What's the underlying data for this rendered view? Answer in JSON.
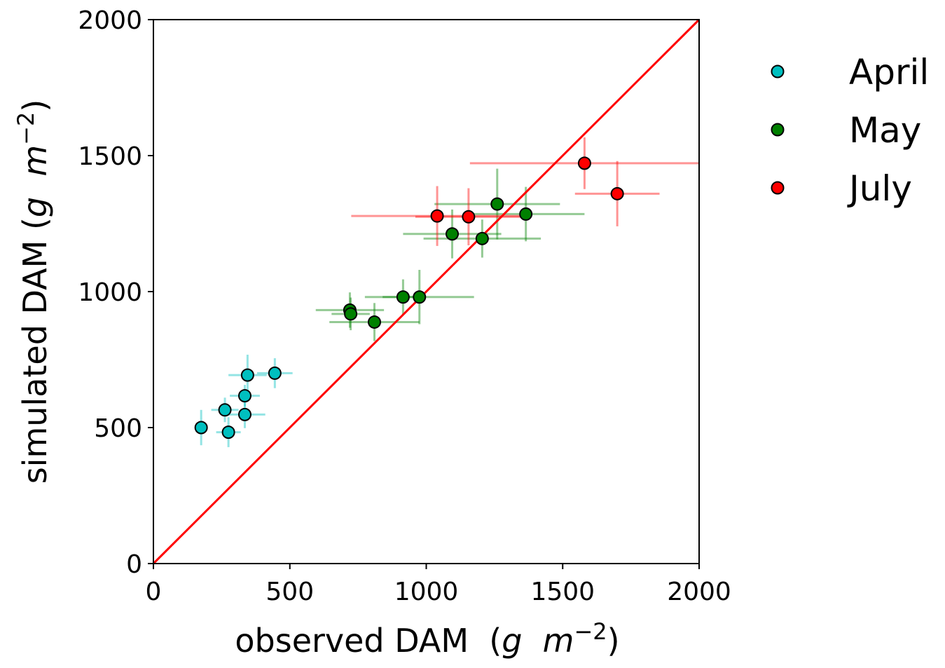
{
  "chart_data": {
    "type": "scatter",
    "xlabel": "observed DAM  (g m−2)",
    "ylabel": "simulated DAM (g m−2)",
    "xlim": [
      0,
      2000
    ],
    "ylim": [
      0,
      2000
    ],
    "xticks": [
      "0",
      "500",
      "1000",
      "1500",
      "2000"
    ],
    "yticks": [
      "0",
      "500",
      "1000",
      "1500",
      "2000"
    ],
    "grid": false,
    "legend_position": "outside-right-top",
    "reference_line": {
      "type": "1:1",
      "color": "#ff0000"
    },
    "series": [
      {
        "name": "April",
        "color": "#00bfbf",
        "points": [
          {
            "x": 175,
            "y": 500,
            "xerr": 15,
            "yerr": 65
          },
          {
            "x": 262,
            "y": 565,
            "xerr": 50,
            "yerr": 45
          },
          {
            "x": 275,
            "y": 483,
            "xerr": 45,
            "yerr": 55
          },
          {
            "x": 335,
            "y": 548,
            "xerr": 75,
            "yerr": 50
          },
          {
            "x": 335,
            "y": 617,
            "xerr": 55,
            "yerr": 40
          },
          {
            "x": 345,
            "y": 693,
            "xerr": 70,
            "yerr": 75
          },
          {
            "x": 445,
            "y": 700,
            "xerr": 65,
            "yerr": 55
          }
        ]
      },
      {
        "name": "May",
        "color": "#008000",
        "points": [
          {
            "x": 720,
            "y": 932,
            "xerr": 125,
            "yerr": 65
          },
          {
            "x": 723,
            "y": 918,
            "xerr": 70,
            "yerr": 60
          },
          {
            "x": 810,
            "y": 888,
            "xerr": 165,
            "yerr": 70
          },
          {
            "x": 915,
            "y": 980,
            "xerr": 75,
            "yerr": 65
          },
          {
            "x": 975,
            "y": 980,
            "xerr": 200,
            "yerr": 100
          },
          {
            "x": 1095,
            "y": 1212,
            "xerr": 180,
            "yerr": 90
          },
          {
            "x": 1205,
            "y": 1195,
            "xerr": 215,
            "yerr": 70
          },
          {
            "x": 1260,
            "y": 1322,
            "xerr": 230,
            "yerr": 130
          },
          {
            "x": 1365,
            "y": 1285,
            "xerr": 215,
            "yerr": 100
          }
        ]
      },
      {
        "name": "July",
        "color": "#ff0000",
        "points": [
          {
            "x": 1040,
            "y": 1278,
            "xerr": 315,
            "yerr": 110
          },
          {
            "x": 1155,
            "y": 1275,
            "xerr": 195,
            "yerr": 105
          },
          {
            "x": 1580,
            "y": 1472,
            "xerr": 420,
            "yerr": 95
          },
          {
            "x": 1700,
            "y": 1360,
            "xerr": 155,
            "yerr": 120
          }
        ]
      }
    ]
  }
}
